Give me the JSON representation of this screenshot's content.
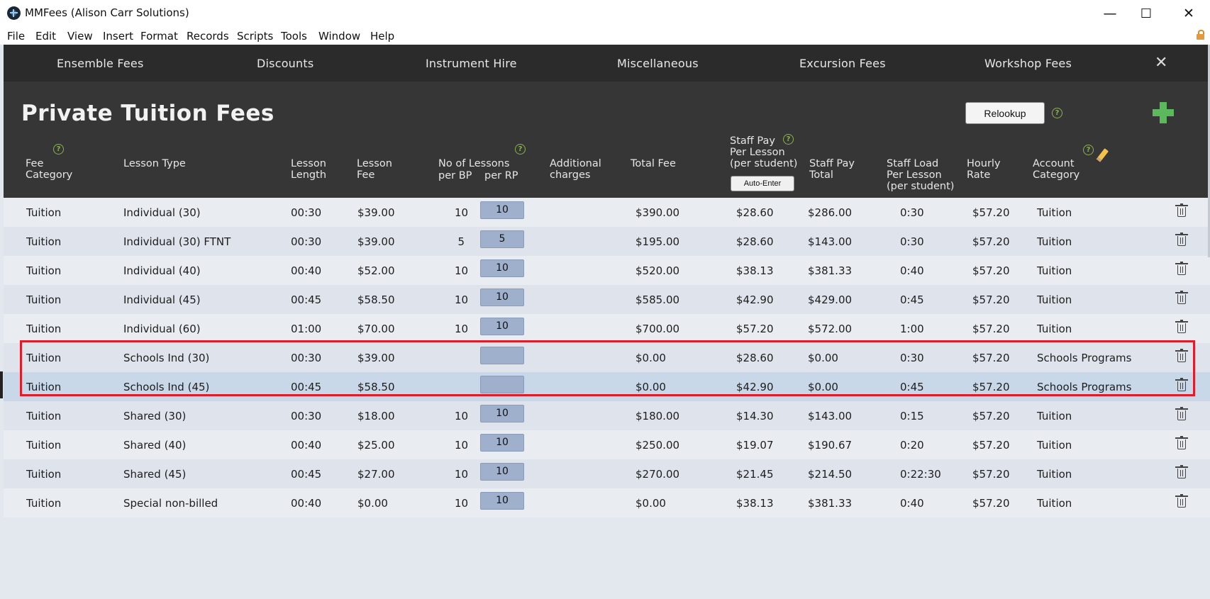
{
  "window": {
    "title": "MMFees (Alison Carr Solutions)",
    "minimize": "—",
    "maximize": "☐",
    "close": "✕"
  },
  "menu": [
    "File",
    "Edit",
    "View",
    "Insert",
    "Format",
    "Records",
    "Scripts",
    "Tools",
    "Window",
    "Help"
  ],
  "tabs": [
    "Ensemble Fees",
    "Discounts",
    "Instrument Hire",
    "Miscellaneous",
    "Excursion Fees",
    "Workshop Fees"
  ],
  "tab_close": "✕",
  "page": {
    "title": "Private Tuition Fees",
    "relookup_label": "Relookup",
    "help_glyph": "?"
  },
  "headers": {
    "fee_category": [
      "Fee",
      "Category"
    ],
    "lesson_type": "Lesson Type",
    "lesson_length": [
      "Lesson",
      "Length"
    ],
    "lesson_fee": [
      "Lesson",
      "Fee"
    ],
    "no_lessons": "No of Lessons",
    "per_bp": "per BP",
    "per_rp": "per RP",
    "additional": [
      "Additional",
      "charges"
    ],
    "total_fee": "Total Fee",
    "staff_pay_per_lesson": [
      "Staff Pay",
      "Per Lesson",
      "(per student)"
    ],
    "auto_enter": "Auto-Enter",
    "staff_pay_total": [
      "Staff Pay",
      "Total"
    ],
    "staff_load": [
      "Staff Load",
      "Per Lesson",
      "(per student)"
    ],
    "hourly_rate": [
      "Hourly",
      "Rate"
    ],
    "account_category": [
      "Account",
      "Category"
    ]
  },
  "rows": [
    {
      "fee_category": "Tuition",
      "lesson_type": "Individual (30)",
      "length": "00:30",
      "fee": "$39.00",
      "per_bp": "10",
      "per_rp": "10",
      "additional": "",
      "total": "$390.00",
      "staff_pay": "$28.60",
      "staff_total": "$286.00",
      "load": "0:30",
      "hourly": "$57.20",
      "account": "Tuition"
    },
    {
      "fee_category": "Tuition",
      "lesson_type": "Individual (30) FTNT",
      "length": "00:30",
      "fee": "$39.00",
      "per_bp": "5",
      "per_rp": "5",
      "additional": "",
      "total": "$195.00",
      "staff_pay": "$28.60",
      "staff_total": "$143.00",
      "load": "0:30",
      "hourly": "$57.20",
      "account": "Tuition"
    },
    {
      "fee_category": "Tuition",
      "lesson_type": "Individual (40)",
      "length": "00:40",
      "fee": "$52.00",
      "per_bp": "10",
      "per_rp": "10",
      "additional": "",
      "total": "$520.00",
      "staff_pay": "$38.13",
      "staff_total": "$381.33",
      "load": "0:40",
      "hourly": "$57.20",
      "account": "Tuition"
    },
    {
      "fee_category": "Tuition",
      "lesson_type": "Individual (45)",
      "length": "00:45",
      "fee": "$58.50",
      "per_bp": "10",
      "per_rp": "10",
      "additional": "",
      "total": "$585.00",
      "staff_pay": "$42.90",
      "staff_total": "$429.00",
      "load": "0:45",
      "hourly": "$57.20",
      "account": "Tuition"
    },
    {
      "fee_category": "Tuition",
      "lesson_type": "Individual (60)",
      "length": "01:00",
      "fee": "$70.00",
      "per_bp": "10",
      "per_rp": "10",
      "additional": "",
      "total": "$700.00",
      "staff_pay": "$57.20",
      "staff_total": "$572.00",
      "load": "1:00",
      "hourly": "$57.20",
      "account": "Tuition"
    },
    {
      "fee_category": "Tuition",
      "lesson_type": "Schools Ind (30)",
      "length": "00:30",
      "fee": "$39.00",
      "per_bp": "",
      "per_rp": "",
      "additional": "",
      "total": "$0.00",
      "staff_pay": "$28.60",
      "staff_total": "$0.00",
      "load": "0:30",
      "hourly": "$57.20",
      "account": "Schools Programs"
    },
    {
      "fee_category": "Tuition",
      "lesson_type": "Schools Ind (45)",
      "length": "00:45",
      "fee": "$58.50",
      "per_bp": "",
      "per_rp": "",
      "additional": "",
      "total": "$0.00",
      "staff_pay": "$42.90",
      "staff_total": "$0.00",
      "load": "0:45",
      "hourly": "$57.20",
      "account": "Schools Programs"
    },
    {
      "fee_category": "Tuition",
      "lesson_type": "Shared (30)",
      "length": "00:30",
      "fee": "$18.00",
      "per_bp": "10",
      "per_rp": "10",
      "additional": "",
      "total": "$180.00",
      "staff_pay": "$14.30",
      "staff_total": "$143.00",
      "load": "0:15",
      "hourly": "$57.20",
      "account": "Tuition"
    },
    {
      "fee_category": "Tuition",
      "lesson_type": "Shared (40)",
      "length": "00:40",
      "fee": "$25.00",
      "per_bp": "10",
      "per_rp": "10",
      "additional": "",
      "total": "$250.00",
      "staff_pay": "$19.07",
      "staff_total": "$190.67",
      "load": "0:20",
      "hourly": "$57.20",
      "account": "Tuition"
    },
    {
      "fee_category": "Tuition",
      "lesson_type": "Shared (45)",
      "length": "00:45",
      "fee": "$27.00",
      "per_bp": "10",
      "per_rp": "10",
      "additional": "",
      "total": "$270.00",
      "staff_pay": "$21.45",
      "staff_total": "$214.50",
      "load": "0:22:30",
      "hourly": "$57.20",
      "account": "Tuition"
    },
    {
      "fee_category": "Tuition",
      "lesson_type": "Special non-billed",
      "length": "00:40",
      "fee": "$0.00",
      "per_bp": "10",
      "per_rp": "10",
      "additional": "",
      "total": "$0.00",
      "staff_pay": "$38.13",
      "staff_total": "$381.33",
      "load": "0:40",
      "hourly": "$57.20",
      "account": "Tuition"
    }
  ],
  "selected_row": 6,
  "highlighted_rows": [
    5,
    6
  ],
  "colors": {
    "highlight": "#e01b2a",
    "add": "#5cb85c",
    "help": "#8ab34a"
  }
}
